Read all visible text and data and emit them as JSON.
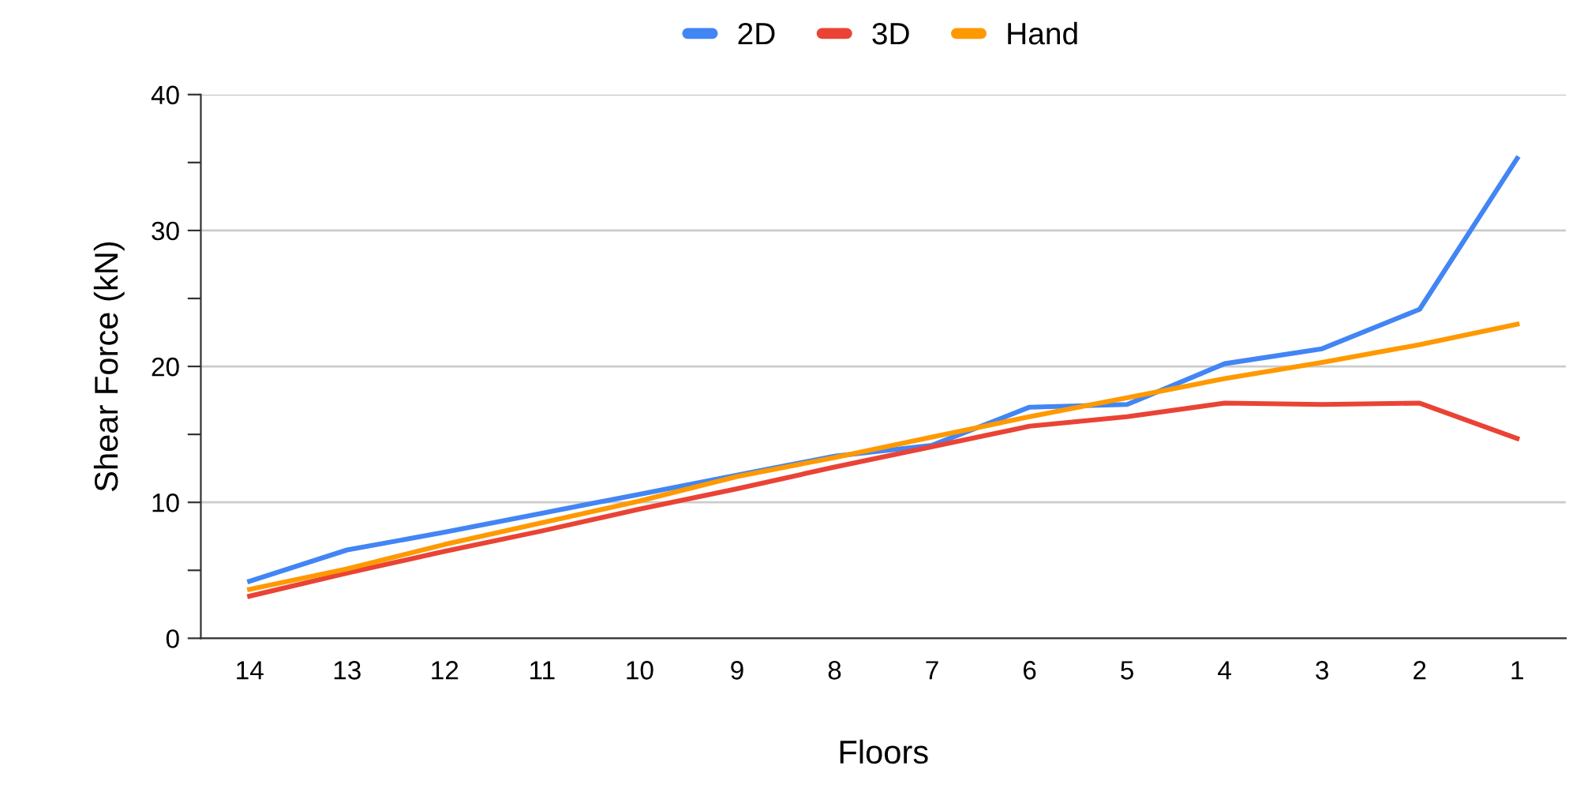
{
  "chart_data": {
    "type": "line",
    "xlabel": "Floors",
    "ylabel": "Shear Force (kN)",
    "categories": [
      "14",
      "13",
      "12",
      "11",
      "10",
      "9",
      "8",
      "7",
      "6",
      "5",
      "4",
      "3",
      "2",
      "1"
    ],
    "series": [
      {
        "name": "2D",
        "color": "#4285f4",
        "values": [
          4.2,
          6.5,
          7.8,
          9.2,
          10.6,
          12.0,
          13.4,
          14.2,
          17.0,
          17.2,
          20.2,
          21.3,
          24.2,
          35.3
        ]
      },
      {
        "name": "3D",
        "color": "#ea4335",
        "values": [
          3.1,
          4.8,
          6.4,
          7.9,
          9.5,
          11.0,
          12.6,
          14.1,
          15.6,
          16.3,
          17.3,
          17.2,
          17.3,
          14.7
        ]
      },
      {
        "name": "Hand",
        "color": "#ff9900",
        "values": [
          3.6,
          5.1,
          6.9,
          8.5,
          10.1,
          11.9,
          13.3,
          14.8,
          16.3,
          17.7,
          19.1,
          20.3,
          21.6,
          23.1
        ]
      }
    ],
    "ylim": [
      0,
      40
    ],
    "yticks": [
      0,
      {
        "value": 5,
        "label": null
      },
      10,
      {
        "value": 15,
        "label": null
      },
      20,
      {
        "value": 25,
        "label": null
      },
      30,
      {
        "value": 35,
        "label": null
      },
      40
    ],
    "grid": "y",
    "legend": "top",
    "marker": "none",
    "line_style": "solid"
  }
}
